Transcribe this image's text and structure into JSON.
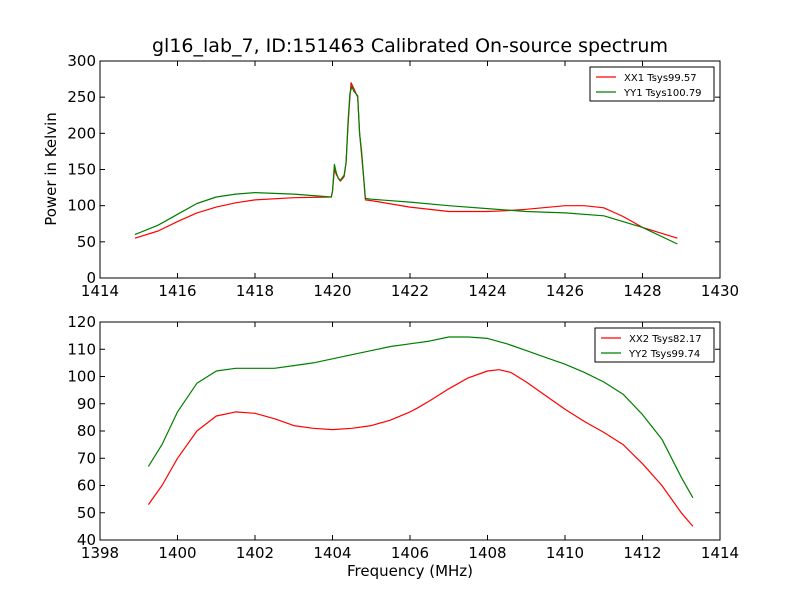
{
  "chart_data": [
    {
      "type": "line",
      "title": "gl16_lab_7, ID:151463 Calibrated On-source spectrum",
      "xlabel": "",
      "ylabel": "Power in Kelvin",
      "xlim": [
        1414,
        1430
      ],
      "ylim": [
        0,
        300
      ],
      "xticks": [
        "1414",
        "1416",
        "1418",
        "1420",
        "1422",
        "1424",
        "1426",
        "1428",
        "1430"
      ],
      "yticks": [
        "0",
        "50",
        "100",
        "150",
        "200",
        "250",
        "300"
      ],
      "legend_position": "top-right",
      "series": [
        {
          "name": "XX1 Tsys99.57",
          "color": "#ff0000",
          "points": [
            [
              1414.9,
              55
            ],
            [
              1415.5,
              65
            ],
            [
              1416,
              78
            ],
            [
              1416.5,
              90
            ],
            [
              1417,
              98
            ],
            [
              1417.5,
              104
            ],
            [
              1418,
              108
            ],
            [
              1419,
              111
            ],
            [
              1419.97,
              112
            ],
            [
              1420.0,
              120
            ],
            [
              1420.05,
              150
            ],
            [
              1420.1,
              143
            ],
            [
              1420.15,
              138
            ],
            [
              1420.2,
              134
            ],
            [
              1420.3,
              140
            ],
            [
              1420.35,
              160
            ],
            [
              1420.4,
              210
            ],
            [
              1420.45,
              250
            ],
            [
              1420.48,
              270
            ],
            [
              1420.55,
              262
            ],
            [
              1420.65,
              250
            ],
            [
              1420.7,
              200
            ],
            [
              1420.75,
              170
            ],
            [
              1420.8,
              140
            ],
            [
              1420.85,
              108
            ],
            [
              1421,
              107
            ],
            [
              1422,
              98
            ],
            [
              1423,
              92
            ],
            [
              1424,
              92
            ],
            [
              1424.5,
              93
            ],
            [
              1425,
              95
            ],
            [
              1426,
              100
            ],
            [
              1426.5,
              100
            ],
            [
              1427,
              97
            ],
            [
              1427.5,
              85
            ],
            [
              1428,
              70
            ],
            [
              1428.9,
              55
            ]
          ]
        },
        {
          "name": "YY1 Tsys100.79",
          "color": "#007f00",
          "points": [
            [
              1414.9,
              60
            ],
            [
              1415.5,
              73
            ],
            [
              1416,
              88
            ],
            [
              1416.5,
              103
            ],
            [
              1417,
              112
            ],
            [
              1417.5,
              116
            ],
            [
              1418,
              118
            ],
            [
              1419,
              116
            ],
            [
              1419.97,
              112
            ],
            [
              1420.0,
              120
            ],
            [
              1420.05,
              157
            ],
            [
              1420.1,
              145
            ],
            [
              1420.15,
              138
            ],
            [
              1420.2,
              135
            ],
            [
              1420.3,
              142
            ],
            [
              1420.35,
              160
            ],
            [
              1420.4,
              215
            ],
            [
              1420.45,
              255
            ],
            [
              1420.5,
              265
            ],
            [
              1420.55,
              258
            ],
            [
              1420.65,
              252
            ],
            [
              1420.7,
              200
            ],
            [
              1420.75,
              175
            ],
            [
              1420.8,
              142
            ],
            [
              1420.85,
              110
            ],
            [
              1421,
              109
            ],
            [
              1422,
              105
            ],
            [
              1423,
              100
            ],
            [
              1424,
              96
            ],
            [
              1425,
              92
            ],
            [
              1426,
              90
            ],
            [
              1427,
              86
            ],
            [
              1428,
              70
            ],
            [
              1428.9,
              47
            ]
          ]
        }
      ]
    },
    {
      "type": "line",
      "title": "",
      "xlabel": "Frequency (MHz)",
      "ylabel": "",
      "xlim": [
        1398,
        1414
      ],
      "ylim": [
        40,
        120
      ],
      "xticks": [
        "1398",
        "1400",
        "1402",
        "1404",
        "1406",
        "1408",
        "1410",
        "1412",
        "1414"
      ],
      "yticks": [
        "40",
        "50",
        "60",
        "70",
        "80",
        "90",
        "100",
        "110",
        "120"
      ],
      "legend_position": "top-right",
      "series": [
        {
          "name": "XX2 Tsys82.17",
          "color": "#ff0000",
          "points": [
            [
              1399.25,
              53
            ],
            [
              1399.6,
              60
            ],
            [
              1400,
              70
            ],
            [
              1400.5,
              80
            ],
            [
              1401,
              85.5
            ],
            [
              1401.5,
              87
            ],
            [
              1402,
              86.5
            ],
            [
              1402.5,
              84.5
            ],
            [
              1403,
              82
            ],
            [
              1403.5,
              81
            ],
            [
              1404,
              80.5
            ],
            [
              1404.5,
              81
            ],
            [
              1405,
              82
            ],
            [
              1405.5,
              84
            ],
            [
              1406,
              87
            ],
            [
              1406.2,
              88.5
            ],
            [
              1406.5,
              91
            ],
            [
              1407,
              95.5
            ],
            [
              1407.5,
              99.5
            ],
            [
              1408,
              102
            ],
            [
              1408.3,
              102.5
            ],
            [
              1408.6,
              101.5
            ],
            [
              1409,
              98
            ],
            [
              1409.5,
              93
            ],
            [
              1410,
              88
            ],
            [
              1410.5,
              83.5
            ],
            [
              1411,
              79.5
            ],
            [
              1411.5,
              75
            ],
            [
              1412,
              68
            ],
            [
              1412.5,
              60
            ],
            [
              1413,
              50
            ],
            [
              1413.3,
              45
            ]
          ]
        },
        {
          "name": "YY2 Tsys99.74",
          "color": "#007f00",
          "points": [
            [
              1399.25,
              67
            ],
            [
              1399.6,
              75
            ],
            [
              1400,
              87
            ],
            [
              1400.5,
              97.5
            ],
            [
              1401,
              102
            ],
            [
              1401.5,
              103
            ],
            [
              1402,
              103
            ],
            [
              1402.5,
              103
            ],
            [
              1403,
              104
            ],
            [
              1403.5,
              105
            ],
            [
              1404,
              106.5
            ],
            [
              1404.5,
              108
            ],
            [
              1405,
              109.5
            ],
            [
              1405.5,
              111
            ],
            [
              1406,
              112
            ],
            [
              1406.5,
              113
            ],
            [
              1407,
              114.5
            ],
            [
              1407.5,
              114.5
            ],
            [
              1408,
              114
            ],
            [
              1408.5,
              112
            ],
            [
              1409,
              109.5
            ],
            [
              1409.5,
              107
            ],
            [
              1410,
              104.5
            ],
            [
              1410.5,
              101.5
            ],
            [
              1411,
              98
            ],
            [
              1411.5,
              93.5
            ],
            [
              1412,
              86
            ],
            [
              1412.5,
              77
            ],
            [
              1413,
              63
            ],
            [
              1413.3,
              55.5
            ]
          ]
        }
      ]
    }
  ]
}
